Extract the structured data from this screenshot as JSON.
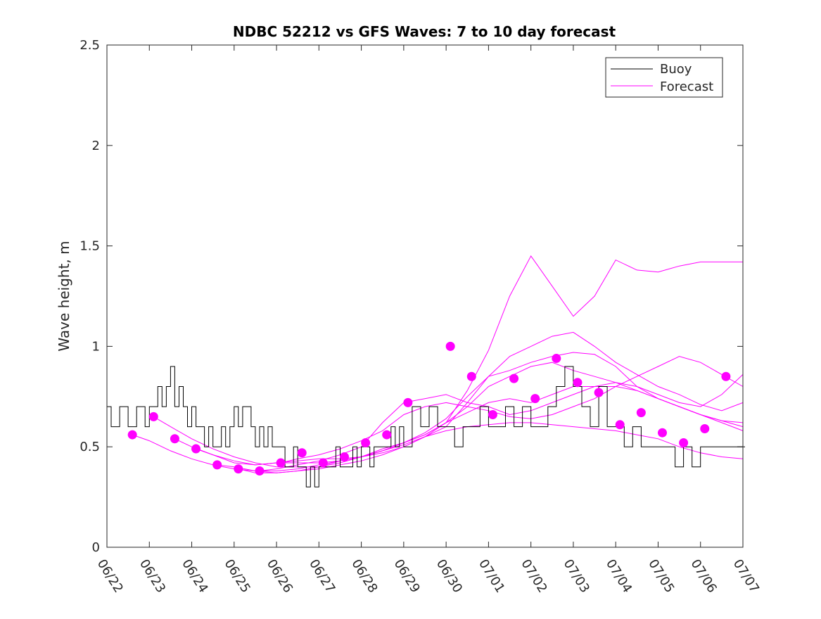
{
  "chart_data": {
    "type": "line",
    "title": "NDBC 52212 vs GFS Waves: 7 to 10 day forecast",
    "xlabel": "",
    "ylabel": "Wave height, m",
    "xlim": [
      "06/22",
      "07/07"
    ],
    "ylim": [
      0,
      2.5
    ],
    "x_ticks": [
      "06/22",
      "06/23",
      "06/24",
      "06/25",
      "06/26",
      "06/27",
      "06/28",
      "06/29",
      "06/30",
      "07/01",
      "07/02",
      "07/03",
      "07/04",
      "07/05",
      "07/06",
      "07/07"
    ],
    "y_ticks": [
      "0",
      "0.5",
      "1",
      "1.5",
      "2",
      "2.5"
    ],
    "grid": false,
    "legend_position": "top-right",
    "colors": {
      "buoy": "#000000",
      "forecast": "#ff00ff"
    },
    "series": [
      {
        "name": "Buoy",
        "note_x_units": "days after 06/22",
        "x": [
          0,
          0.1,
          0.3,
          0.5,
          0.7,
          0.9,
          1.0,
          1.1,
          1.2,
          1.3,
          1.4,
          1.5,
          1.6,
          1.7,
          1.8,
          1.9,
          2.0,
          2.1,
          2.2,
          2.3,
          2.4,
          2.5,
          2.6,
          2.7,
          2.8,
          2.9,
          3.0,
          3.1,
          3.2,
          3.3,
          3.4,
          3.5,
          3.6,
          3.7,
          3.8,
          3.9,
          4.0,
          4.1,
          4.2,
          4.3,
          4.4,
          4.5,
          4.6,
          4.7,
          4.8,
          4.9,
          5.0,
          5.1,
          5.2,
          5.3,
          5.4,
          5.5,
          5.6,
          5.7,
          5.8,
          5.9,
          6.0,
          6.1,
          6.2,
          6.3,
          6.4,
          6.5,
          6.6,
          6.7,
          6.8,
          6.9,
          7.0,
          7.2,
          7.4,
          7.6,
          7.8,
          8.0,
          8.2,
          8.4,
          8.6,
          8.8,
          9.0,
          9.2,
          9.4,
          9.6,
          9.8,
          10.0,
          10.2,
          10.4,
          10.6,
          10.8,
          11.0,
          11.2,
          11.4,
          11.6,
          11.8,
          12.0,
          12.2,
          12.4,
          12.6,
          12.8,
          13.0,
          13.2,
          13.4,
          13.6,
          13.8,
          14.0,
          14.2,
          14.4,
          14.6,
          14.8,
          15.0
        ],
        "y": [
          0.7,
          0.6,
          0.7,
          0.6,
          0.7,
          0.6,
          0.7,
          0.7,
          0.8,
          0.7,
          0.8,
          0.9,
          0.7,
          0.8,
          0.7,
          0.6,
          0.7,
          0.6,
          0.6,
          0.5,
          0.6,
          0.5,
          0.5,
          0.6,
          0.5,
          0.6,
          0.7,
          0.6,
          0.7,
          0.7,
          0.6,
          0.5,
          0.6,
          0.5,
          0.6,
          0.5,
          0.5,
          0.5,
          0.4,
          0.4,
          0.5,
          0.4,
          0.4,
          0.3,
          0.4,
          0.3,
          0.4,
          0.4,
          0.4,
          0.4,
          0.5,
          0.4,
          0.4,
          0.4,
          0.5,
          0.4,
          0.5,
          0.5,
          0.4,
          0.5,
          0.5,
          0.5,
          0.5,
          0.6,
          0.5,
          0.6,
          0.5,
          0.7,
          0.6,
          0.7,
          0.6,
          0.6,
          0.5,
          0.6,
          0.6,
          0.7,
          0.6,
          0.6,
          0.7,
          0.6,
          0.7,
          0.6,
          0.6,
          0.7,
          0.8,
          0.9,
          0.8,
          0.7,
          0.6,
          0.8,
          0.6,
          0.6,
          0.5,
          0.6,
          0.5,
          0.5,
          0.5,
          0.5,
          0.4,
          0.5,
          0.4,
          0.5,
          0.5,
          0.5,
          0.5,
          0.5,
          0.5
        ]
      },
      {
        "name": "Forecast",
        "runs": [
          {
            "x": [
              0.6,
              1.0,
              1.5,
              2.0,
              2.5,
              3.0,
              3.5,
              4.0,
              4.5,
              5.0,
              5.5,
              6.0,
              6.5,
              7.0,
              7.5,
              8.0,
              8.5,
              9.0,
              9.5,
              10.0,
              10.5,
              11.0,
              11.5,
              12.0,
              12.5,
              13.0,
              13.5,
              14.0,
              14.5,
              15.0
            ],
            "y": [
              0.56,
              0.53,
              0.48,
              0.44,
              0.41,
              0.39,
              0.38,
              0.38,
              0.39,
              0.41,
              0.43,
              0.45,
              0.48,
              0.51,
              0.55,
              0.58,
              0.6,
              0.61,
              0.62,
              0.62,
              0.61,
              0.6,
              0.59,
              0.58,
              0.56,
              0.54,
              0.5,
              0.47,
              0.45,
              0.44
            ]
          },
          {
            "x": [
              1.1,
              1.5,
              2.0,
              2.5,
              3.0,
              3.5,
              4.0,
              4.5,
              5.0,
              5.5,
              6.0,
              6.5,
              7.0,
              7.5,
              8.0,
              8.5,
              9.0,
              9.5,
              10.0,
              10.5,
              11.0,
              11.5,
              12.0,
              12.5,
              13.0,
              13.5,
              14.0,
              14.5,
              15.0
            ],
            "y": [
              0.65,
              0.6,
              0.54,
              0.49,
              0.45,
              0.42,
              0.4,
              0.4,
              0.4,
              0.42,
              0.45,
              0.49,
              0.52,
              0.56,
              0.62,
              0.67,
              0.72,
              0.74,
              0.72,
              0.76,
              0.8,
              0.8,
              0.8,
              0.78,
              0.74,
              0.7,
              0.66,
              0.63,
              0.6
            ]
          },
          {
            "x": [
              1.6,
              2.0,
              2.5,
              3.0,
              3.5,
              4.0,
              4.5,
              5.0,
              5.5,
              6.0,
              6.5,
              7.0,
              7.5,
              8.0,
              8.5,
              9.0,
              9.5,
              10.0,
              10.5,
              11.0,
              11.5,
              12.0,
              12.5,
              13.0,
              13.5,
              14.0,
              14.5,
              15.0
            ],
            "y": [
              0.54,
              0.5,
              0.46,
              0.43,
              0.41,
              0.42,
              0.43,
              0.44,
              0.44,
              0.45,
              0.48,
              0.52,
              0.56,
              0.62,
              0.7,
              0.8,
              0.85,
              0.9,
              0.92,
              0.88,
              0.85,
              0.82,
              0.78,
              0.74,
              0.7,
              0.66,
              0.63,
              0.62
            ]
          },
          {
            "x": [
              2.1,
              2.5,
              3.0,
              3.5,
              4.0,
              4.5,
              5.0,
              5.5,
              6.0,
              6.5,
              7.0,
              7.5,
              8.0,
              8.5,
              9.0,
              9.5,
              10.0,
              10.5,
              11.0,
              11.5,
              12.0,
              12.5,
              13.0,
              13.5,
              14.0,
              14.5,
              15.0
            ],
            "y": [
              0.49,
              0.46,
              0.42,
              0.41,
              0.42,
              0.42,
              0.42,
              0.43,
              0.45,
              0.48,
              0.52,
              0.57,
              0.64,
              0.75,
              0.85,
              0.88,
              0.92,
              0.95,
              0.97,
              0.96,
              0.9,
              0.8,
              0.74,
              0.7,
              0.66,
              0.62,
              0.58
            ]
          },
          {
            "x": [
              2.6,
              3.0,
              3.5,
              4.0,
              4.5,
              5.0,
              5.5,
              6.0,
              6.5,
              7.0,
              7.5,
              8.0,
              8.5,
              9.0,
              9.5,
              10.0,
              10.5,
              11.0,
              11.5,
              12.0,
              12.5,
              13.0,
              13.5,
              14.0,
              14.5,
              15.0
            ],
            "y": [
              0.41,
              0.4,
              0.38,
              0.37,
              0.38,
              0.39,
              0.41,
              0.43,
              0.46,
              0.5,
              0.55,
              0.6,
              0.72,
              0.85,
              0.95,
              1.0,
              1.05,
              1.07,
              1.0,
              0.92,
              0.86,
              0.8,
              0.76,
              0.71,
              0.68,
              0.72
            ]
          },
          {
            "x": [
              3.1,
              3.5,
              4.0,
              4.5,
              5.0,
              5.5,
              6.0,
              6.5,
              7.0,
              7.5,
              8.0,
              8.5,
              9.0,
              9.5,
              10.0,
              10.5,
              11.0,
              11.5,
              12.0,
              12.5,
              13.0,
              13.5,
              14.0,
              14.5,
              15.0
            ],
            "y": [
              0.39,
              0.37,
              0.37,
              0.38,
              0.4,
              0.43,
              0.45,
              0.47,
              0.5,
              0.55,
              0.62,
              0.78,
              0.98,
              1.25,
              1.45,
              1.3,
              1.15,
              1.25,
              1.43,
              1.38,
              1.37,
              1.4,
              1.42,
              1.42,
              1.42
            ]
          },
          {
            "x": [
              3.6,
              4.0,
              4.5,
              5.0,
              5.5,
              6.0,
              6.5,
              7.0,
              7.5,
              8.0,
              8.5,
              9.0,
              9.5,
              10.0,
              10.5,
              11.0,
              11.5,
              12.0,
              12.5,
              13.0,
              13.5,
              14.0,
              14.5,
              15.0
            ],
            "y": [
              0.38,
              0.39,
              0.41,
              0.43,
              0.46,
              0.5,
              0.62,
              0.72,
              0.74,
              0.76,
              0.72,
              0.7,
              0.66,
              0.68,
              0.72,
              0.76,
              0.8,
              0.82,
              0.8,
              0.76,
              0.72,
              0.7,
              0.76,
              0.86
            ]
          },
          {
            "x": [
              4.1,
              4.5,
              5.0,
              5.5,
              6.0,
              6.5,
              7.0,
              7.5,
              8.0,
              8.5,
              9.0,
              9.5,
              10.0,
              10.5,
              11.0,
              11.5,
              12.0,
              12.5,
              13.0,
              13.5,
              14.0,
              14.5,
              15.0
            ],
            "y": [
              0.42,
              0.44,
              0.46,
              0.49,
              0.53,
              0.58,
              0.66,
              0.7,
              0.72,
              0.7,
              0.68,
              0.65,
              0.64,
              0.66,
              0.7,
              0.74,
              0.8,
              0.85,
              0.9,
              0.95,
              0.92,
              0.86,
              0.8
            ]
          }
        ],
        "markers_x": [
          0.6,
          1.1,
          1.6,
          2.1,
          2.6,
          3.1,
          3.6,
          4.1,
          4.6,
          5.1,
          5.6,
          6.1,
          6.6,
          7.1,
          8.1,
          8.6,
          9.1,
          9.6,
          10.1,
          10.6,
          11.1,
          11.6,
          12.1,
          12.6,
          13.1,
          13.6,
          14.1,
          14.6
        ],
        "markers_y": [
          0.56,
          0.65,
          0.54,
          0.49,
          0.41,
          0.39,
          0.38,
          0.42,
          0.47,
          0.42,
          0.45,
          0.52,
          0.56,
          0.72,
          1.0,
          0.85,
          0.66,
          0.84,
          0.74,
          0.94,
          0.82,
          0.77,
          0.61,
          0.67,
          0.57,
          0.52,
          0.59,
          0.85
        ]
      }
    ]
  }
}
